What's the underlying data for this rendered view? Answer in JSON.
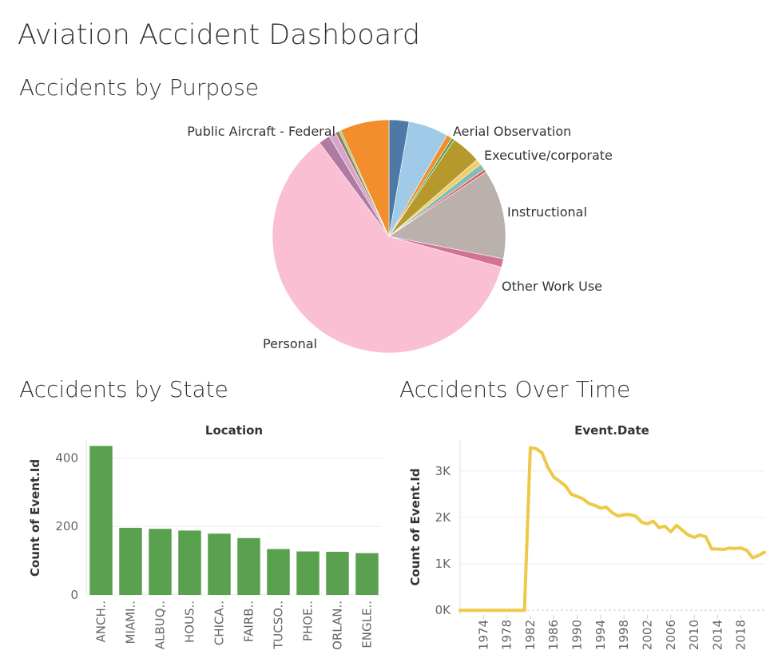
{
  "dashboard_title": "Aviation Accident Dashboard",
  "chart_data": [
    {
      "type": "pie",
      "title": "Accidents by Purpose",
      "slices": [
        {
          "label": "",
          "value": 2.8,
          "color": "#4e79a7"
        },
        {
          "label": "",
          "value": 5.6,
          "color": "#a0cbe8"
        },
        {
          "label": "Aerial Observation",
          "value": 0.8,
          "color": "#f28e2b"
        },
        {
          "label": "",
          "value": 0.4,
          "color": "#59a14f"
        },
        {
          "label": "",
          "value": 4.2,
          "color": "#b6992d"
        },
        {
          "label": "Executive/corporate",
          "value": 0.8,
          "color": "#f1ce63"
        },
        {
          "label": "",
          "value": 0.9,
          "color": "#86bcb6"
        },
        {
          "label": "",
          "value": 0.4,
          "color": "#e15759"
        },
        {
          "label": "Instructional",
          "value": 12.6,
          "color": "#bab0ac"
        },
        {
          "label": "Other Work Use",
          "value": 1.2,
          "color": "#d37295"
        },
        {
          "label": "Personal",
          "value": 61.5,
          "color": "#fabfd2"
        },
        {
          "label": "",
          "value": 1.6,
          "color": "#b07aa1"
        },
        {
          "label": "",
          "value": 1.0,
          "color": "#d4a6c8"
        },
        {
          "label": "Public Aircraft - Federal",
          "value": 0.5,
          "color": "#9d7660"
        },
        {
          "label": "",
          "value": 0.3,
          "color": "#8cd17d"
        },
        {
          "label": "",
          "value": 6.9,
          "color": "#f28e2b"
        }
      ]
    },
    {
      "type": "bar",
      "title": "Accidents by State",
      "xlabel": "Location",
      "ylabel": "Count of Event.Id",
      "categories": [
        "ANCH..",
        "MIAMI..",
        "ALBUQ..",
        "HOUS..",
        "CHICA..",
        "FAIRB..",
        "TUCSO..",
        "PHOE..",
        "ORLAN..",
        "ENGLE.."
      ],
      "values": [
        435,
        196,
        193,
        188,
        179,
        166,
        134,
        127,
        126,
        122
      ],
      "yticks": [
        0,
        200,
        400
      ],
      "ytick_labels": [
        "0",
        "200",
        "400"
      ],
      "ylim": [
        0,
        450
      ],
      "color": "#59a14f",
      "grid": true
    },
    {
      "type": "line",
      "title": "Accidents Over Time",
      "xlabel": "Event.Date",
      "ylabel": "Count of Event.Id",
      "x": [
        1970,
        1971,
        1972,
        1973,
        1974,
        1975,
        1976,
        1977,
        1978,
        1979,
        1980,
        1981,
        1982,
        1983,
        1984,
        1985,
        1986,
        1987,
        1988,
        1989,
        1990,
        1991,
        1992,
        1993,
        1994,
        1995,
        1996,
        1997,
        1998,
        1999,
        2000,
        2001,
        2002,
        2003,
        2004,
        2005,
        2006,
        2007,
        2008,
        2009,
        2010,
        2011,
        2012,
        2013,
        2014,
        2015,
        2016,
        2017,
        2018,
        2019,
        2020,
        2021,
        2022
      ],
      "y": [
        0,
        0,
        0,
        0,
        0,
        0,
        0,
        0,
        0,
        0,
        0,
        0,
        3500,
        3480,
        3390,
        3080,
        2870,
        2780,
        2680,
        2500,
        2450,
        2400,
        2300,
        2260,
        2200,
        2220,
        2100,
        2030,
        2060,
        2060,
        2030,
        1900,
        1860,
        1920,
        1780,
        1810,
        1690,
        1830,
        1720,
        1620,
        1570,
        1620,
        1580,
        1320,
        1320,
        1310,
        1340,
        1330,
        1340,
        1290,
        1130,
        1180,
        1250
      ],
      "xticks": [
        1974,
        1978,
        1982,
        1986,
        1990,
        1994,
        1998,
        2002,
        2006,
        2010,
        2014,
        2018
      ],
      "yticks": [
        0,
        1000,
        2000,
        3000
      ],
      "ytick_labels": [
        "0K",
        "1K",
        "2K",
        "3K"
      ],
      "xlim": [
        1970,
        2022
      ],
      "ylim": [
        -100,
        3650
      ],
      "color": "#edc948",
      "grid": true
    }
  ]
}
